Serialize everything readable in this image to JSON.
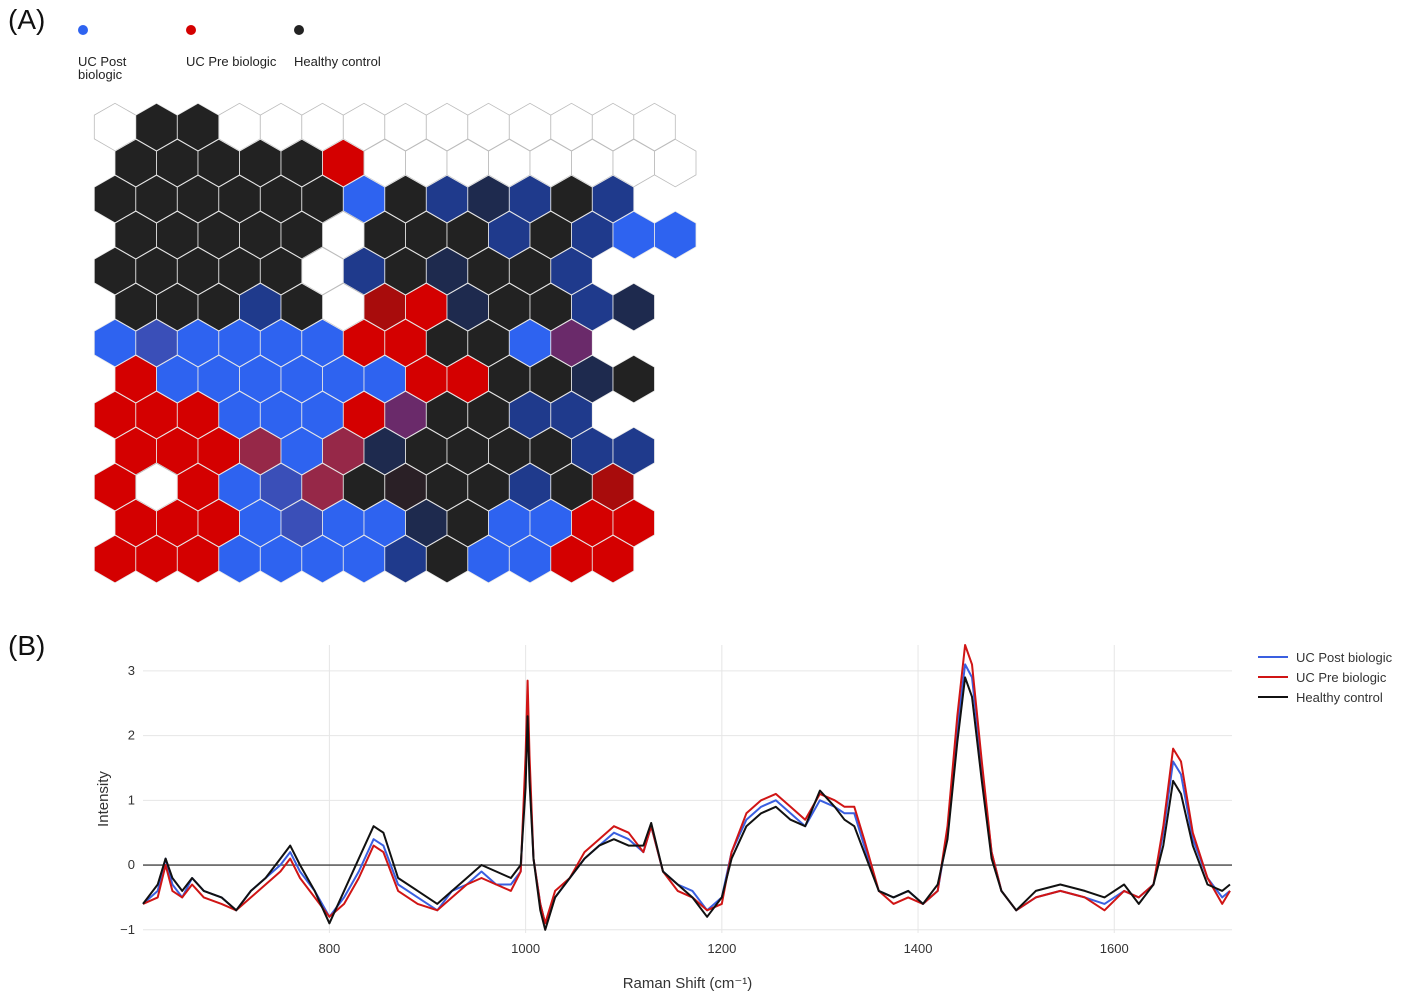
{
  "panel_a": {
    "label": "(A)",
    "legend": [
      {
        "name": "UC Post biologic",
        "color": "#2e63f0"
      },
      {
        "name": "UC Pre biologic",
        "color": "#d40000"
      },
      {
        "name": "Healthy control",
        "color": "#222222"
      }
    ],
    "palette": {
      "W": "#ffffff",
      "K": "#222222",
      "R": "#d40000",
      "B": "#2e63f0",
      "N": "#1f3a8c",
      "D": "#1e2a4e",
      "M": "#3a4fb8",
      "P": "#6a2a6a",
      "Q": "#962848",
      "C": "#a80c0c",
      "X": "#2a2026",
      "V": "#283a6a"
    },
    "grid_rows": [
      "WKKWWWWWWWWWWW",
      "KKKKKRWWWWWWWW",
      "KKKKKKBKNDNKN",
      "KKKKKWKKKNKNBB",
      "KKKKKWNKDKKN",
      "KKKNKWCRDKKND",
      "BMBBBBRRKKBP",
      "RBBBBBBRRKKDK",
      "RRRBBBRPKKNN",
      "RRRQBQDKKKKNN",
      "RWRBMQKXKKNKC",
      "RRRBMBBDKBBRR",
      "RRRBBBBNKBBRR"
    ]
  },
  "panel_b": {
    "label": "(B)"
  },
  "chart_data": {
    "type": "line",
    "xlabel": "Raman Shift (cm⁻¹)",
    "ylabel": "Intensity",
    "xlim": [
      610,
      1720
    ],
    "ylim": [
      -1.05,
      3.4
    ],
    "xticks": [
      800,
      1000,
      1200,
      1400,
      1600
    ],
    "yticks": [
      -1,
      0,
      1,
      2,
      3
    ],
    "grid": true,
    "legend_position": "top-right",
    "series": [
      {
        "name": "UC Post biologic",
        "color": "#3a5fe0",
        "points": [
          [
            610,
            -0.6
          ],
          [
            625,
            -0.4
          ],
          [
            633,
            0.1
          ],
          [
            640,
            -0.3
          ],
          [
            650,
            -0.5
          ],
          [
            660,
            -0.2
          ],
          [
            672,
            -0.4
          ],
          [
            690,
            -0.5
          ],
          [
            705,
            -0.7
          ],
          [
            720,
            -0.4
          ],
          [
            735,
            -0.2
          ],
          [
            750,
            0.0
          ],
          [
            760,
            0.2
          ],
          [
            770,
            -0.1
          ],
          [
            785,
            -0.4
          ],
          [
            800,
            -0.8
          ],
          [
            815,
            -0.5
          ],
          [
            830,
            -0.1
          ],
          [
            845,
            0.4
          ],
          [
            855,
            0.3
          ],
          [
            870,
            -0.3
          ],
          [
            890,
            -0.5
          ],
          [
            910,
            -0.7
          ],
          [
            925,
            -0.4
          ],
          [
            940,
            -0.3
          ],
          [
            955,
            -0.1
          ],
          [
            970,
            -0.3
          ],
          [
            985,
            -0.3
          ],
          [
            995,
            -0.1
          ],
          [
            1000,
            1.5
          ],
          [
            1002,
            2.6
          ],
          [
            1004,
            1.5
          ],
          [
            1008,
            0.1
          ],
          [
            1015,
            -0.6
          ],
          [
            1020,
            -0.9
          ],
          [
            1030,
            -0.5
          ],
          [
            1045,
            -0.2
          ],
          [
            1060,
            0.1
          ],
          [
            1075,
            0.3
          ],
          [
            1090,
            0.5
          ],
          [
            1105,
            0.4
          ],
          [
            1120,
            0.2
          ],
          [
            1128,
            0.6
          ],
          [
            1140,
            -0.1
          ],
          [
            1155,
            -0.3
          ],
          [
            1170,
            -0.4
          ],
          [
            1185,
            -0.7
          ],
          [
            1200,
            -0.5
          ],
          [
            1210,
            0.2
          ],
          [
            1225,
            0.7
          ],
          [
            1240,
            0.9
          ],
          [
            1255,
            1.0
          ],
          [
            1270,
            0.8
          ],
          [
            1285,
            0.6
          ],
          [
            1300,
            1.0
          ],
          [
            1315,
            0.9
          ],
          [
            1325,
            0.8
          ],
          [
            1335,
            0.8
          ],
          [
            1345,
            0.3
          ],
          [
            1360,
            -0.4
          ],
          [
            1375,
            -0.5
          ],
          [
            1390,
            -0.4
          ],
          [
            1405,
            -0.6
          ],
          [
            1420,
            -0.4
          ],
          [
            1430,
            0.5
          ],
          [
            1440,
            2.1
          ],
          [
            1448,
            3.1
          ],
          [
            1455,
            2.9
          ],
          [
            1465,
            1.5
          ],
          [
            1475,
            0.2
          ],
          [
            1485,
            -0.4
          ],
          [
            1500,
            -0.7
          ],
          [
            1520,
            -0.5
          ],
          [
            1545,
            -0.4
          ],
          [
            1570,
            -0.5
          ],
          [
            1590,
            -0.6
          ],
          [
            1610,
            -0.4
          ],
          [
            1625,
            -0.5
          ],
          [
            1640,
            -0.3
          ],
          [
            1650,
            0.5
          ],
          [
            1660,
            1.6
          ],
          [
            1668,
            1.4
          ],
          [
            1680,
            0.4
          ],
          [
            1695,
            -0.2
          ],
          [
            1710,
            -0.5
          ],
          [
            1718,
            -0.4
          ]
        ]
      },
      {
        "name": "UC Pre biologic",
        "color": "#d01515",
        "points": [
          [
            610,
            -0.6
          ],
          [
            625,
            -0.5
          ],
          [
            633,
            0.0
          ],
          [
            640,
            -0.4
          ],
          [
            650,
            -0.5
          ],
          [
            660,
            -0.3
          ],
          [
            672,
            -0.5
          ],
          [
            690,
            -0.6
          ],
          [
            705,
            -0.7
          ],
          [
            720,
            -0.5
          ],
          [
            735,
            -0.3
          ],
          [
            750,
            -0.1
          ],
          [
            760,
            0.1
          ],
          [
            770,
            -0.2
          ],
          [
            785,
            -0.5
          ],
          [
            800,
            -0.8
          ],
          [
            815,
            -0.6
          ],
          [
            830,
            -0.2
          ],
          [
            845,
            0.3
          ],
          [
            855,
            0.2
          ],
          [
            870,
            -0.4
          ],
          [
            890,
            -0.6
          ],
          [
            910,
            -0.7
          ],
          [
            925,
            -0.5
          ],
          [
            940,
            -0.3
          ],
          [
            955,
            -0.2
          ],
          [
            970,
            -0.3
          ],
          [
            985,
            -0.4
          ],
          [
            995,
            -0.1
          ],
          [
            1000,
            1.7
          ],
          [
            1002,
            2.85
          ],
          [
            1004,
            1.7
          ],
          [
            1008,
            0.1
          ],
          [
            1015,
            -0.6
          ],
          [
            1020,
            -0.9
          ],
          [
            1030,
            -0.4
          ],
          [
            1045,
            -0.2
          ],
          [
            1060,
            0.2
          ],
          [
            1075,
            0.4
          ],
          [
            1090,
            0.6
          ],
          [
            1105,
            0.5
          ],
          [
            1120,
            0.2
          ],
          [
            1128,
            0.6
          ],
          [
            1140,
            -0.1
          ],
          [
            1155,
            -0.4
          ],
          [
            1170,
            -0.5
          ],
          [
            1185,
            -0.7
          ],
          [
            1200,
            -0.6
          ],
          [
            1210,
            0.2
          ],
          [
            1225,
            0.8
          ],
          [
            1240,
            1.0
          ],
          [
            1255,
            1.1
          ],
          [
            1270,
            0.9
          ],
          [
            1285,
            0.7
          ],
          [
            1300,
            1.1
          ],
          [
            1315,
            1.0
          ],
          [
            1325,
            0.9
          ],
          [
            1335,
            0.9
          ],
          [
            1345,
            0.4
          ],
          [
            1360,
            -0.4
          ],
          [
            1375,
            -0.6
          ],
          [
            1390,
            -0.5
          ],
          [
            1405,
            -0.6
          ],
          [
            1420,
            -0.4
          ],
          [
            1430,
            0.6
          ],
          [
            1440,
            2.3
          ],
          [
            1448,
            3.4
          ],
          [
            1455,
            3.1
          ],
          [
            1465,
            1.6
          ],
          [
            1475,
            0.2
          ],
          [
            1485,
            -0.4
          ],
          [
            1500,
            -0.7
          ],
          [
            1520,
            -0.5
          ],
          [
            1545,
            -0.4
          ],
          [
            1570,
            -0.5
          ],
          [
            1590,
            -0.7
          ],
          [
            1610,
            -0.4
          ],
          [
            1625,
            -0.5
          ],
          [
            1640,
            -0.3
          ],
          [
            1650,
            0.6
          ],
          [
            1660,
            1.8
          ],
          [
            1668,
            1.6
          ],
          [
            1680,
            0.5
          ],
          [
            1695,
            -0.2
          ],
          [
            1710,
            -0.6
          ],
          [
            1718,
            -0.4
          ]
        ]
      },
      {
        "name": "Healthy control",
        "color": "#111111",
        "points": [
          [
            610,
            -0.6
          ],
          [
            625,
            -0.3
          ],
          [
            633,
            0.1
          ],
          [
            640,
            -0.2
          ],
          [
            650,
            -0.4
          ],
          [
            660,
            -0.2
          ],
          [
            672,
            -0.4
          ],
          [
            690,
            -0.5
          ],
          [
            705,
            -0.7
          ],
          [
            720,
            -0.4
          ],
          [
            735,
            -0.2
          ],
          [
            750,
            0.1
          ],
          [
            760,
            0.3
          ],
          [
            770,
            0.0
          ],
          [
            785,
            -0.4
          ],
          [
            800,
            -0.9
          ],
          [
            815,
            -0.4
          ],
          [
            830,
            0.1
          ],
          [
            845,
            0.6
          ],
          [
            855,
            0.5
          ],
          [
            870,
            -0.2
          ],
          [
            890,
            -0.4
          ],
          [
            910,
            -0.6
          ],
          [
            925,
            -0.4
          ],
          [
            940,
            -0.2
          ],
          [
            955,
            0.0
          ],
          [
            970,
            -0.1
          ],
          [
            985,
            -0.2
          ],
          [
            995,
            0.0
          ],
          [
            1000,
            1.2
          ],
          [
            1002,
            2.3
          ],
          [
            1004,
            1.3
          ],
          [
            1008,
            0.1
          ],
          [
            1015,
            -0.7
          ],
          [
            1020,
            -1.0
          ],
          [
            1030,
            -0.5
          ],
          [
            1045,
            -0.2
          ],
          [
            1060,
            0.1
          ],
          [
            1075,
            0.3
          ],
          [
            1090,
            0.4
          ],
          [
            1105,
            0.3
          ],
          [
            1120,
            0.3
          ],
          [
            1128,
            0.65
          ],
          [
            1140,
            -0.1
          ],
          [
            1155,
            -0.3
          ],
          [
            1170,
            -0.5
          ],
          [
            1185,
            -0.8
          ],
          [
            1200,
            -0.5
          ],
          [
            1210,
            0.1
          ],
          [
            1225,
            0.6
          ],
          [
            1240,
            0.8
          ],
          [
            1255,
            0.9
          ],
          [
            1270,
            0.7
          ],
          [
            1285,
            0.6
          ],
          [
            1300,
            1.15
          ],
          [
            1315,
            0.9
          ],
          [
            1325,
            0.7
          ],
          [
            1335,
            0.6
          ],
          [
            1345,
            0.2
          ],
          [
            1360,
            -0.4
          ],
          [
            1375,
            -0.5
          ],
          [
            1390,
            -0.4
          ],
          [
            1405,
            -0.6
          ],
          [
            1420,
            -0.3
          ],
          [
            1430,
            0.4
          ],
          [
            1440,
            1.9
          ],
          [
            1448,
            2.9
          ],
          [
            1455,
            2.6
          ],
          [
            1465,
            1.3
          ],
          [
            1475,
            0.1
          ],
          [
            1485,
            -0.4
          ],
          [
            1500,
            -0.7
          ],
          [
            1520,
            -0.4
          ],
          [
            1545,
            -0.3
          ],
          [
            1570,
            -0.4
          ],
          [
            1590,
            -0.5
          ],
          [
            1610,
            -0.3
          ],
          [
            1625,
            -0.6
          ],
          [
            1640,
            -0.3
          ],
          [
            1650,
            0.3
          ],
          [
            1660,
            1.3
          ],
          [
            1668,
            1.1
          ],
          [
            1680,
            0.3
          ],
          [
            1695,
            -0.3
          ],
          [
            1710,
            -0.4
          ],
          [
            1718,
            -0.3
          ]
        ]
      }
    ]
  }
}
